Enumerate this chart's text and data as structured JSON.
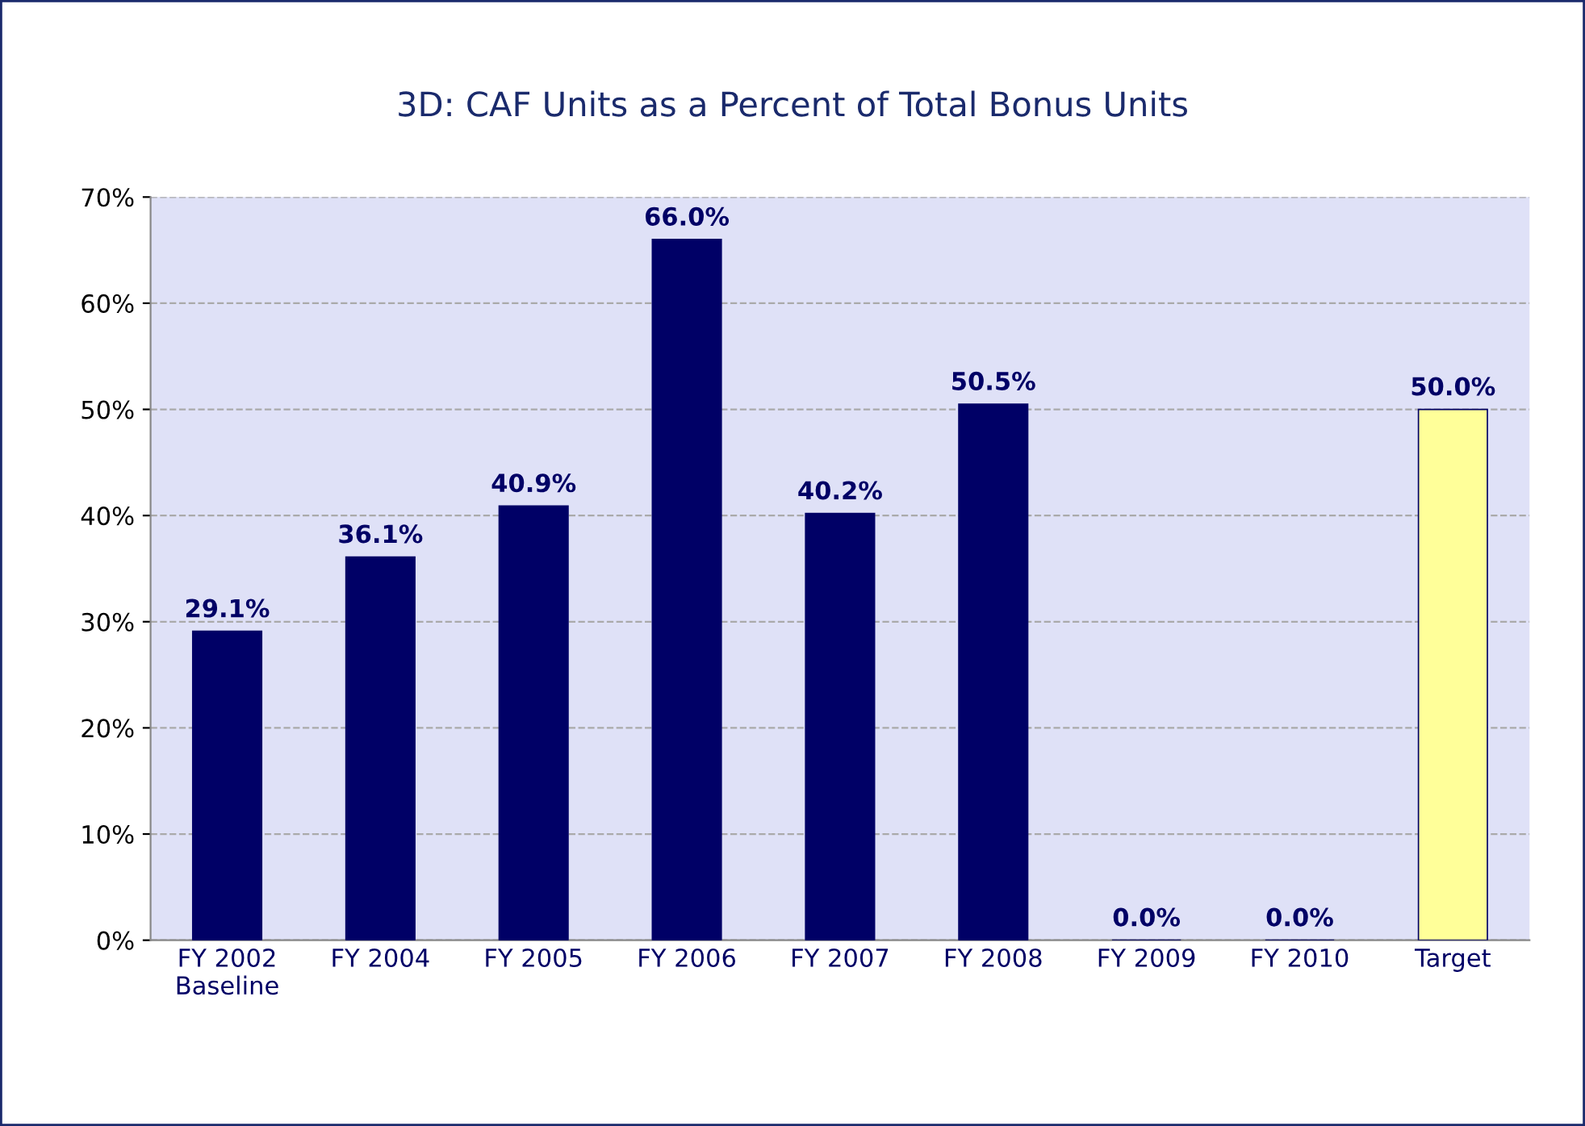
{
  "chart_data": {
    "type": "bar",
    "title": "3D: CAF Units as a Percent of Total Bonus Units",
    "categories": [
      "FY 2002\nBaseline",
      "FY 2004",
      "FY 2005",
      "FY 2006",
      "FY 2007",
      "FY 2008",
      "FY 2009",
      "FY 2010",
      "Target"
    ],
    "values": [
      29.1,
      36.1,
      40.9,
      66.0,
      40.2,
      50.5,
      0.0,
      0.0,
      50.0
    ],
    "colors": [
      "#000066",
      "#000066",
      "#000066",
      "#000066",
      "#000066",
      "#000066",
      "#000066",
      "#000066",
      "#ffff99"
    ],
    "value_labels": [
      "29.1%",
      "36.1%",
      "40.9%",
      "66.0%",
      "40.2%",
      "50.5%",
      "0.0%",
      "0.0%",
      "50.0%"
    ],
    "ylim": [
      0,
      70
    ],
    "yticks": [
      {
        "value": 0,
        "label": "0%"
      },
      {
        "value": 10,
        "label": "10%"
      },
      {
        "value": 20,
        "label": "20%"
      },
      {
        "value": 30,
        "label": "30%"
      },
      {
        "value": 40,
        "label": "40%"
      },
      {
        "value": 50,
        "label": "50%"
      },
      {
        "value": 60,
        "label": "60%"
      },
      {
        "value": 70,
        "label": "70%"
      }
    ],
    "grid": "y"
  }
}
